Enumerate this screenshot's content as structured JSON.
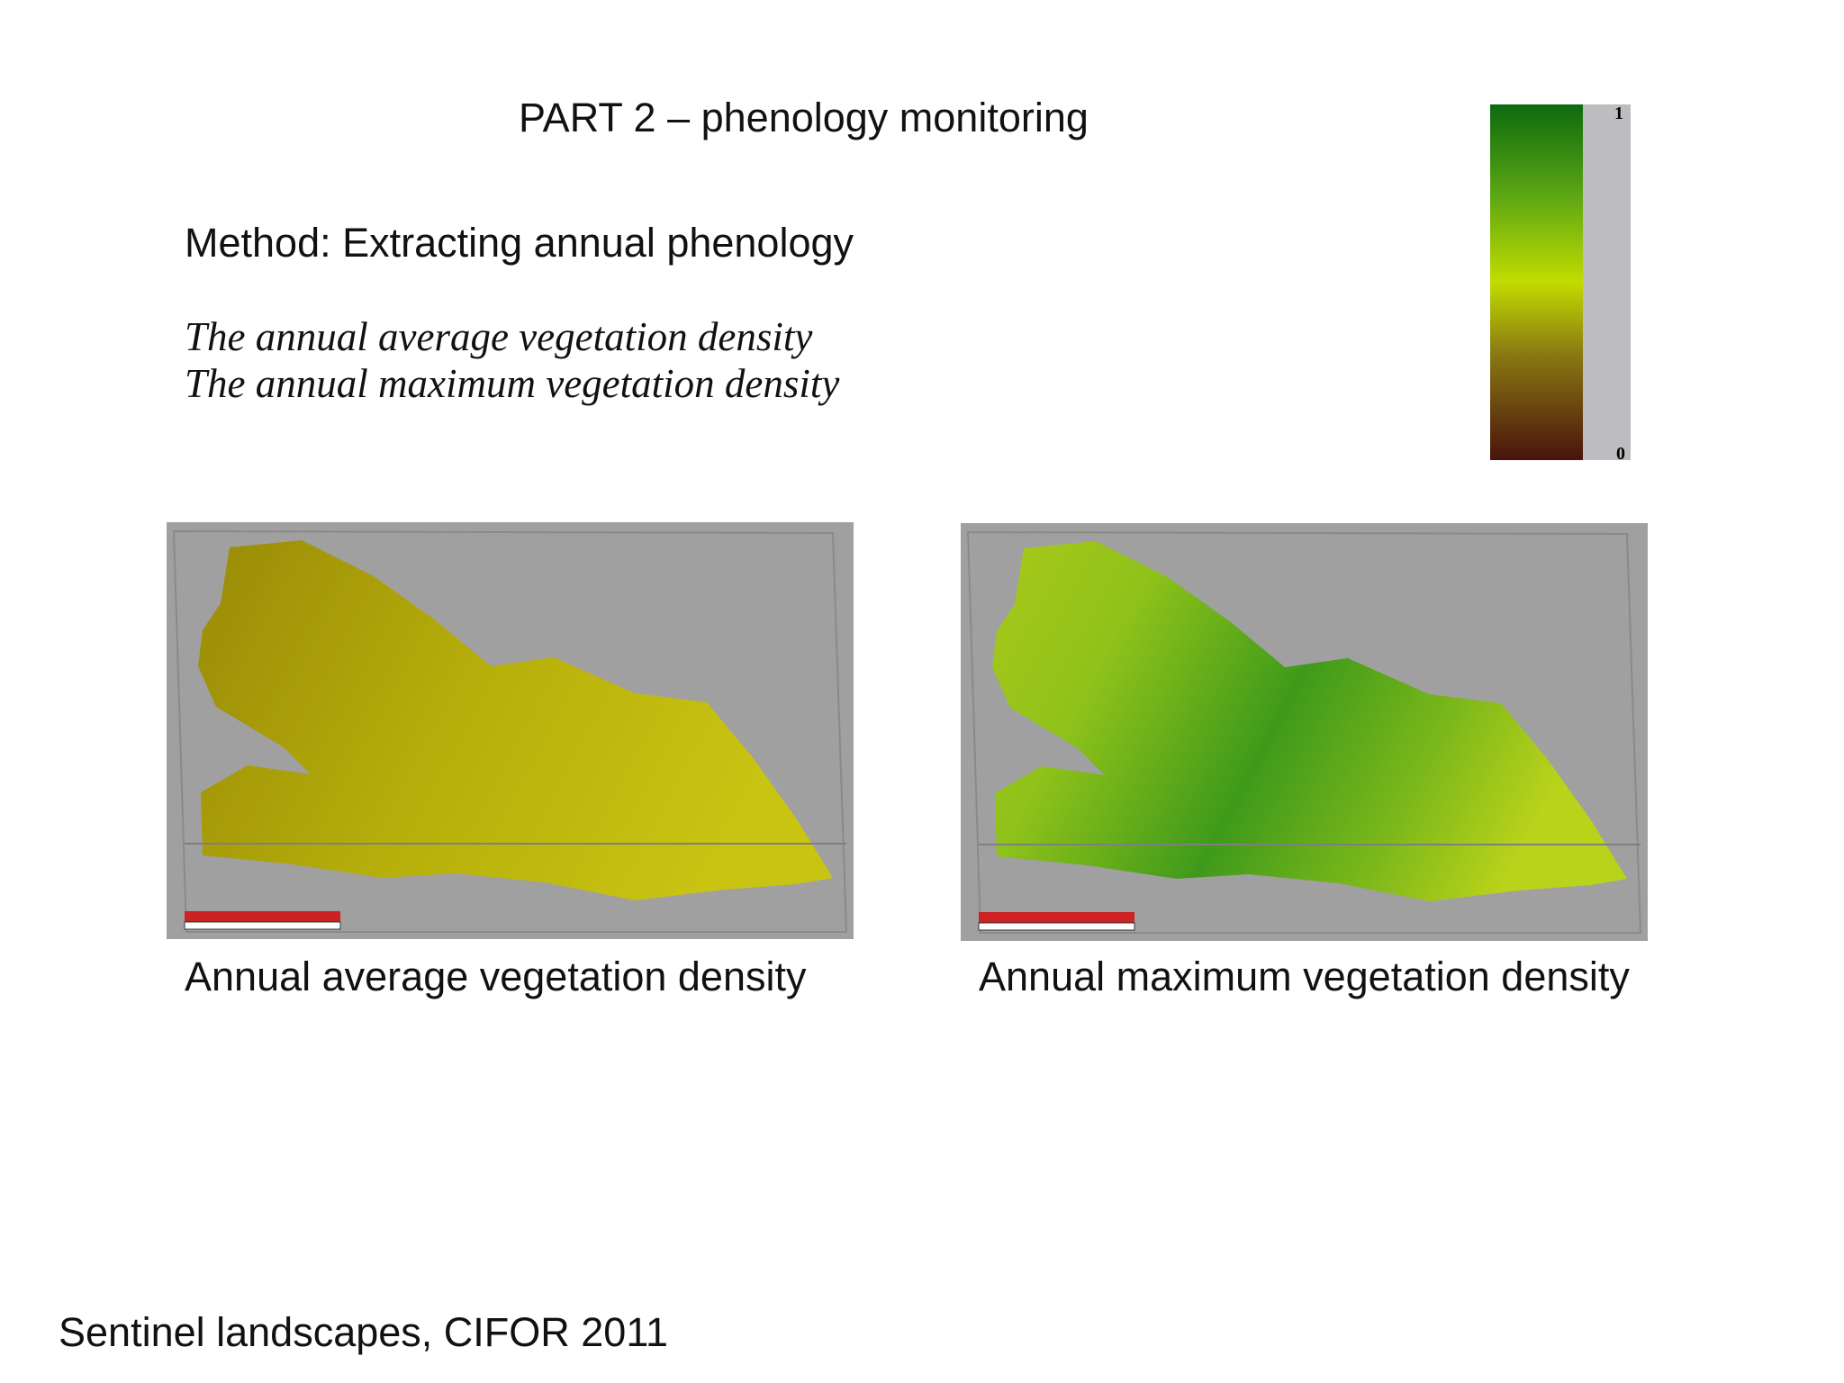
{
  "header": {
    "title": "PART 2 – phenology monitoring"
  },
  "method": "Method: Extracting annual phenology",
  "lines": [
    "The annual average vegetation density",
    "The annual maximum vegetation density"
  ],
  "legend": {
    "max": "1",
    "min": "0"
  },
  "panels": [
    {
      "caption": "Annual average vegetation density"
    },
    {
      "caption": "Annual maximum vegetation density"
    }
  ],
  "footer": "Sentinel landscapes, CIFOR 2011"
}
